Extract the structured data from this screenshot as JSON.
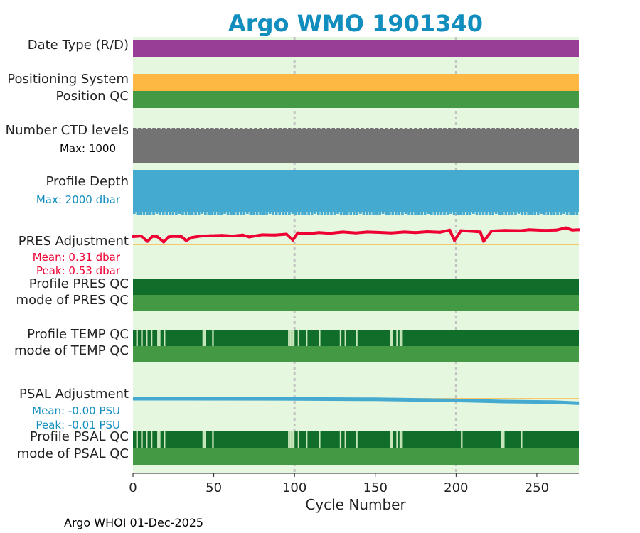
{
  "chart_data": {
    "type": "bar",
    "title": "Argo WMO 1901340",
    "xlabel": "Cycle Number",
    "xlim": [
      0,
      276
    ],
    "xticks": [
      0,
      50,
      100,
      150,
      200,
      250
    ],
    "x_grid_lines": [
      100,
      200
    ],
    "footer": "Argo WHOI 01-Dec-2025",
    "rows": [
      {
        "label": "Date Type (R/D)",
        "kind": "solid",
        "color": "#993e96"
      },
      {
        "label": "Positioning System",
        "kind": "solid",
        "color": "#fdb743"
      },
      {
        "label": "Position QC",
        "kind": "solid",
        "color": "#449944"
      },
      {
        "label": "Number CTD levels",
        "kind": "levels",
        "color": "#737373",
        "sublabel": "Max: 1000"
      },
      {
        "label": "Profile Depth",
        "kind": "depth",
        "color": "#45aad0",
        "sublabel": "Max: 2000 dbar"
      },
      {
        "label": "PRES Adjustment",
        "kind": "pres_line",
        "color": "#ee0033",
        "sublabel_1": "Mean: 0.31 dbar",
        "sublabel_2": "Peak: 0.53 dbar"
      },
      {
        "label": "Profile PRES QC",
        "kind": "solid",
        "color": "#116e2a"
      },
      {
        "label": "mode of PRES QC",
        "kind": "solid",
        "color": "#449944"
      },
      {
        "label": "Profile TEMP QC",
        "kind": "qc_gaps",
        "color": "#116e2a",
        "gap_cycles": [
          2,
          5,
          8,
          11,
          15,
          16,
          19,
          43,
          44,
          49,
          96,
          97,
          98,
          99,
          102,
          107,
          115,
          128,
          131,
          138,
          159,
          160,
          163,
          165,
          166
        ]
      },
      {
        "label": "mode of TEMP QC",
        "kind": "solid",
        "color": "#449944"
      },
      {
        "label": "PSAL Adjustment",
        "kind": "psal_line",
        "color": "#45aad0",
        "sublabel_1": "Mean: -0.00 PSU",
        "sublabel_2": "Peak: -0.01 PSU"
      },
      {
        "label": "Profile PSAL QC",
        "kind": "qc_gaps",
        "color": "#116e2a",
        "gap_cycles": [
          2,
          5,
          8,
          11,
          15,
          16,
          19,
          43,
          44,
          49,
          96,
          97,
          98,
          99,
          102,
          107,
          115,
          128,
          131,
          138,
          159,
          160,
          163,
          165,
          166,
          203,
          228,
          229,
          240
        ]
      },
      {
        "label": "mode of PSAL QC",
        "kind": "solid",
        "color": "#449944"
      }
    ],
    "pres_adjustment_series": {
      "unit": "dbar",
      "baseline": 0.0,
      "x": [
        0,
        5,
        9,
        12,
        15,
        19,
        22,
        25,
        30,
        33,
        36,
        42,
        48,
        55,
        62,
        68,
        72,
        80,
        88,
        95,
        99,
        102,
        108,
        115,
        122,
        130,
        138,
        145,
        150,
        160,
        168,
        175,
        182,
        190,
        196,
        199,
        203,
        210,
        215,
        217,
        222,
        230,
        240,
        245,
        255,
        262,
        268,
        272,
        276
      ],
      "y": [
        0.25,
        0.27,
        0.1,
        0.26,
        0.25,
        0.08,
        0.24,
        0.26,
        0.25,
        0.12,
        0.22,
        0.27,
        0.28,
        0.29,
        0.27,
        0.3,
        0.24,
        0.31,
        0.3,
        0.33,
        0.14,
        0.37,
        0.34,
        0.38,
        0.36,
        0.4,
        0.37,
        0.4,
        0.39,
        0.37,
        0.4,
        0.38,
        0.41,
        0.39,
        0.46,
        0.13,
        0.44,
        0.42,
        0.4,
        0.1,
        0.43,
        0.45,
        0.44,
        0.47,
        0.45,
        0.46,
        0.53,
        0.46,
        0.47
      ]
    },
    "psal_adjustment_series": {
      "unit": "PSU",
      "baseline": 0.0,
      "x": [
        0,
        100,
        150,
        200,
        230,
        260,
        276
      ],
      "y": [
        0.0,
        -0.0003,
        -0.001,
        -0.003,
        -0.005,
        -0.006,
        -0.008
      ]
    }
  }
}
